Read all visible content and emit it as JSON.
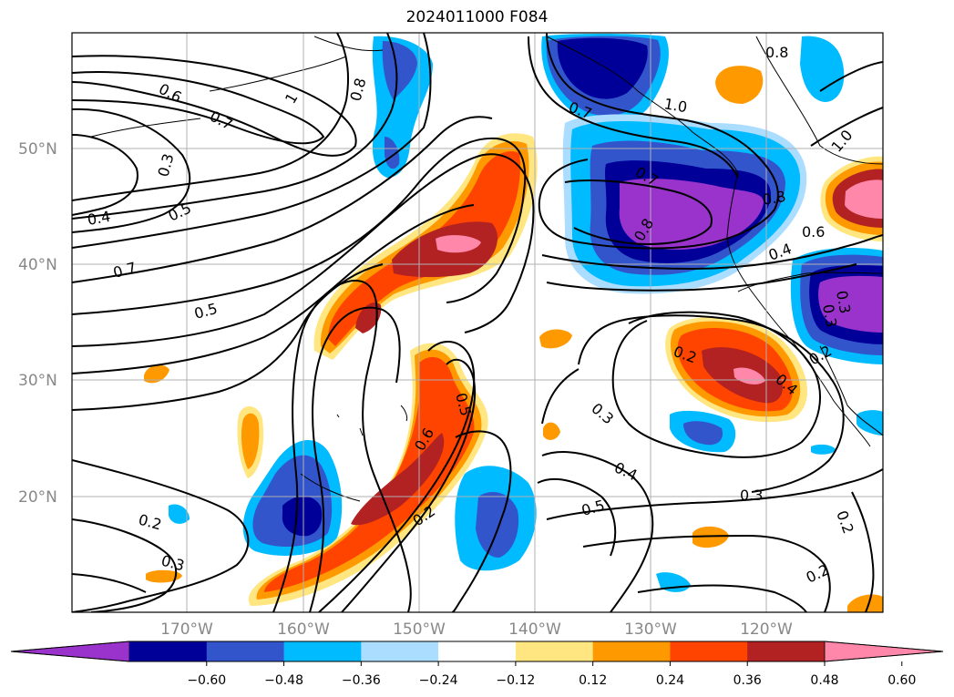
{
  "title": "2024011000 F084",
  "map": {
    "lat_labels": [
      "50°N",
      "40°N",
      "30°N",
      "20°N"
    ],
    "lon_labels": [
      "170°W",
      "160°W",
      "150°W",
      "140°W",
      "130°W",
      "120°W"
    ],
    "gridlines": true,
    "contour_color": "#000000",
    "contour_labels": [
      "0.6",
      "0.7",
      "0.8",
      "1",
      "0.3",
      "0.4",
      "0.5",
      "0.7",
      "0.5",
      "0.7",
      "1.0",
      "0.8",
      "0.7",
      "0.8",
      "1.0",
      "0.8",
      "0.6",
      "0.4",
      "0.3",
      "0.3",
      "0.2",
      "0.4",
      "0.3",
      "0.4",
      "0.5",
      "0.6",
      "0.5",
      "0.2",
      "0.2",
      "0.3",
      "0.2",
      "0.3",
      "0.2",
      "0.2"
    ]
  },
  "colorbar": {
    "ticks": [
      "−0.60",
      "−0.48",
      "−0.36",
      "−0.24",
      "−0.12",
      "0.12",
      "0.24",
      "0.36",
      "0.48",
      "0.60"
    ],
    "colors": [
      "#9933cc",
      "#000099",
      "#3355cc",
      "#00bbff",
      "#aaddff",
      "#ffffff",
      "#ffe680",
      "#ff9900",
      "#ff4400",
      "#b22222",
      "#ff88aa"
    ],
    "extend": "both"
  }
}
